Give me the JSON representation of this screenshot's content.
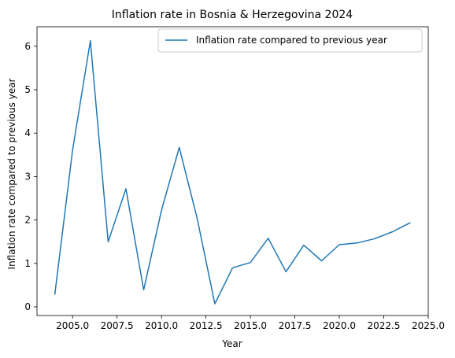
{
  "chart_data": {
    "type": "line",
    "title": "Inflation rate in Bosnia & Herzegovina 2024",
    "xlabel": "Year",
    "ylabel": "Inflation rate compared to previous year",
    "xlim": [
      2003.0,
      2025.0
    ],
    "ylim": [
      -0.2,
      6.45
    ],
    "xticks": [
      2005.0,
      2007.5,
      2010.0,
      2012.5,
      2015.0,
      2017.5,
      2020.0,
      2022.5,
      2025.0
    ],
    "xtick_labels": [
      "2005.0",
      "2007.5",
      "2010.0",
      "2012.5",
      "2015.0",
      "2017.5",
      "2020.0",
      "2022.5",
      "2025.0"
    ],
    "yticks": [
      0,
      1,
      2,
      3,
      4,
      5,
      6
    ],
    "ytick_labels": [
      "0",
      "1",
      "2",
      "3",
      "4",
      "5",
      "6"
    ],
    "grid": false,
    "legend_position": "top-right",
    "series": [
      {
        "name": "Inflation rate compared to previous year",
        "color": "#1f77b4",
        "x": [
          2004,
          2005,
          2006,
          2007,
          2008,
          2009,
          2010,
          2011,
          2012,
          2013,
          2014,
          2015,
          2016,
          2017,
          2018,
          2019,
          2020,
          2021,
          2022,
          2023,
          2024
        ],
        "y": [
          0.28,
          3.61,
          6.13,
          1.5,
          2.72,
          0.39,
          2.22,
          3.67,
          2.05,
          0.07,
          0.9,
          1.02,
          1.58,
          0.81,
          1.42,
          1.06,
          1.43,
          1.47,
          1.57,
          1.73,
          1.94
        ]
      }
    ]
  }
}
